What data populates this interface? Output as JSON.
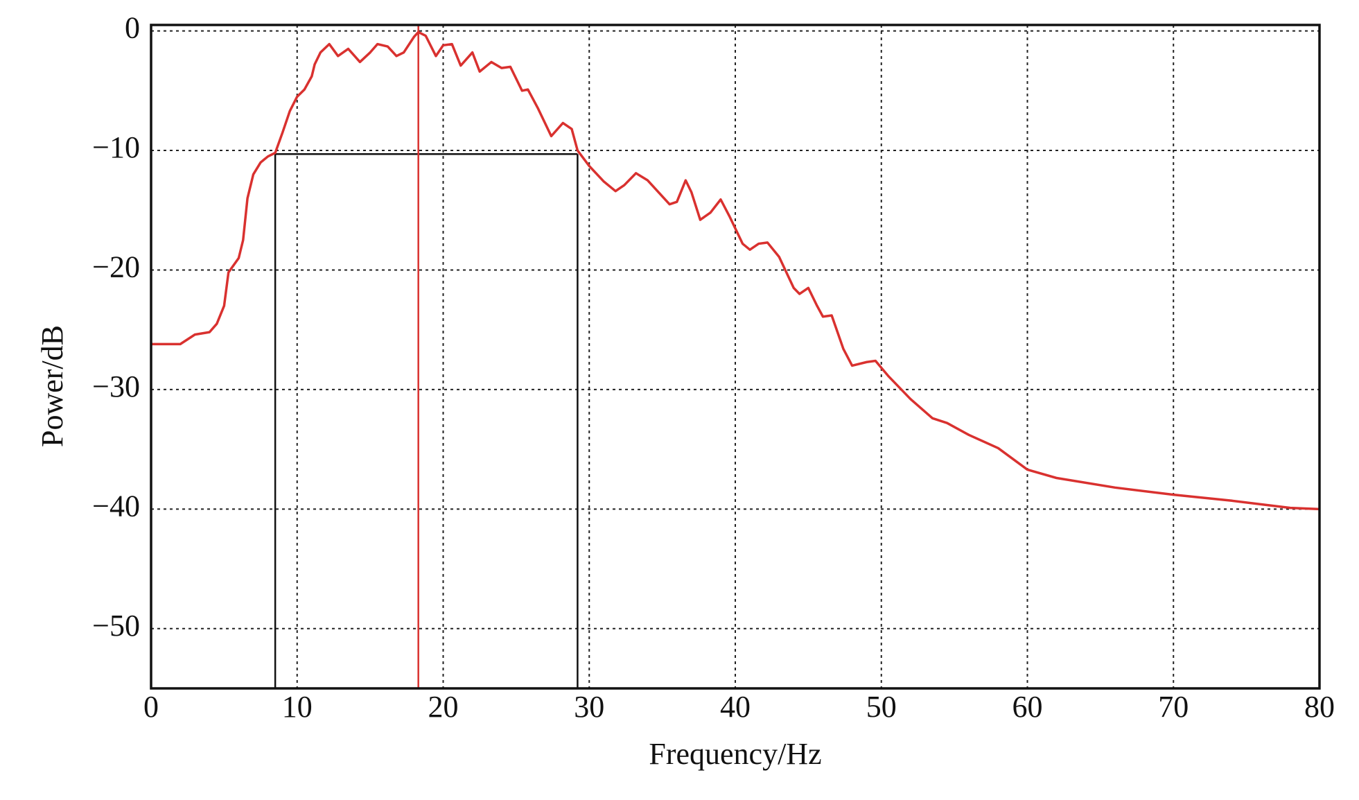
{
  "chart_data": {
    "type": "line",
    "x_label": "Frequency/Hz",
    "y_label": "Power/dB",
    "x": [
      0,
      2,
      3,
      4,
      4.5,
      5,
      5.3,
      6,
      6.3,
      6.6,
      7,
      7.5,
      8,
      8.5,
      9,
      9.5,
      10,
      10.5,
      11,
      11.2,
      11.6,
      12.2,
      12.8,
      13.5,
      14.3,
      15,
      15.5,
      16.2,
      16.8,
      17.3,
      18,
      18.3,
      18.8,
      19.5,
      20,
      20.6,
      21.2,
      22,
      22.5,
      23.3,
      24,
      24.6,
      25.4,
      25.8,
      26.5,
      27.4,
      28.2,
      28.8,
      29.2,
      30,
      31,
      31.8,
      32.4,
      33.2,
      34,
      35.5,
      36,
      36.6,
      37,
      37.6,
      38.3,
      39,
      39.6,
      40.5,
      41,
      41.6,
      42.2,
      43,
      44,
      44.4,
      45,
      45.6,
      46,
      46.6,
      47.4,
      48,
      49,
      49.6,
      50.5,
      52,
      53.5,
      54.5,
      56,
      58,
      60,
      62,
      66,
      70,
      74,
      78,
      80
    ],
    "values": [
      -26.2,
      -26.2,
      -25.4,
      -25.2,
      -24.5,
      -23,
      -20.2,
      -19,
      -17.5,
      -14,
      -12,
      -11,
      -10.5,
      -10.2,
      -8.5,
      -6.7,
      -5.5,
      -4.9,
      -3.8,
      -2.8,
      -1.8,
      -1.1,
      -2.1,
      -1.5,
      -2.6,
      -1.8,
      -1.1,
      -1.3,
      -2.1,
      -1.8,
      -0.5,
      -0.1,
      -0.4,
      -2.1,
      -1.2,
      -1.1,
      -2.9,
      -1.8,
      -3.4,
      -2.6,
      -3.1,
      -3.0,
      -5.0,
      -4.9,
      -6.5,
      -8.8,
      -7.7,
      -8.2,
      -10.0,
      -11.3,
      -12.6,
      -13.4,
      -12.9,
      -11.9,
      -12.5,
      -14.5,
      -14.3,
      -12.5,
      -13.5,
      -15.8,
      -15.2,
      -14.1,
      -15.5,
      -17.8,
      -18.3,
      -17.8,
      -17.7,
      -18.9,
      -21.5,
      -22.0,
      -21.5,
      -23.0,
      -23.9,
      -23.8,
      -26.6,
      -28.0,
      -27.7,
      -27.6,
      -28.9,
      -30.8,
      -32.4,
      -32.8,
      -33.8,
      -34.9,
      -36.7,
      -37.4,
      -38.2,
      -38.8,
      -39.3,
      -39.9,
      -40
    ],
    "color": "#d9312f",
    "xlim": [
      0,
      80
    ],
    "xticks": [
      0,
      10,
      20,
      30,
      40,
      50,
      60,
      70,
      80
    ],
    "ylim": [
      -55,
      0.5
    ],
    "yticks": [
      0,
      {
        "value": -10,
        "label": "−10"
      },
      {
        "value": -20,
        "label": "−20"
      },
      {
        "value": -30,
        "label": "−30"
      },
      {
        "value": -40,
        "label": "−40"
      },
      {
        "value": -50,
        "label": "−50"
      }
    ],
    "grid": true,
    "band_edges": [
      8.5,
      29.2
    ],
    "band_level": -10.3,
    "peak_frequency": 18.3,
    "peak_color": "#d9312f"
  }
}
